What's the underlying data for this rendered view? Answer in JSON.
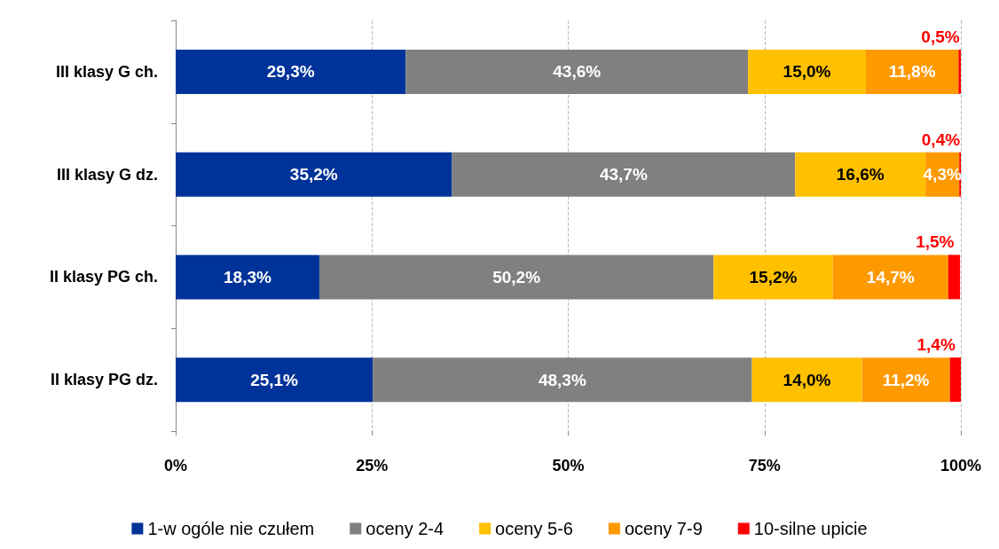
{
  "chart_data": {
    "type": "bar",
    "orientation": "horizontal",
    "stacked": true,
    "categories": [
      "III klasy G ch.",
      "III klasy G dz.",
      "II klasy PG ch.",
      "II klasy PG dz."
    ],
    "series": [
      {
        "name": "1-w ogóle nie czułem",
        "color": "#003399",
        "values": [
          29.3,
          35.2,
          18.3,
          25.1
        ],
        "value_labels": [
          "29,3%",
          "35,2%",
          "18,3%",
          "25,1%"
        ]
      },
      {
        "name": "oceny 2-4",
        "color": "#808080",
        "values": [
          43.6,
          43.7,
          50.2,
          48.3
        ],
        "value_labels": [
          "43,6%",
          "43,7%",
          "50,2%",
          "48,3%"
        ]
      },
      {
        "name": "oceny 5-6",
        "color": "#ffc000",
        "values": [
          15.0,
          16.6,
          15.2,
          14.0
        ],
        "value_labels": [
          "15,0%",
          "16,6%",
          "15,2%",
          "14,0%"
        ]
      },
      {
        "name": "oceny 7-9",
        "color": "#ff9900",
        "values": [
          11.8,
          4.3,
          14.7,
          11.2
        ],
        "value_labels": [
          "11,8%",
          "4,3%",
          "14,7%",
          "11,2%"
        ]
      },
      {
        "name": "10-silne upicie",
        "color": "#ff0000",
        "values": [
          0.5,
          0.4,
          1.5,
          1.4
        ],
        "value_labels": [
          "0,5%",
          "0,4%",
          "1,5%",
          "1,4%"
        ]
      }
    ],
    "xlim": [
      0,
      100
    ],
    "xticks": [
      {
        "value": 0,
        "label": "0%"
      },
      {
        "value": 25,
        "label": "25%"
      },
      {
        "value": 50,
        "label": "50%"
      },
      {
        "value": 75,
        "label": "75%"
      },
      {
        "value": 100,
        "label": "100%"
      }
    ],
    "grid": "x",
    "legend": "bottom"
  }
}
